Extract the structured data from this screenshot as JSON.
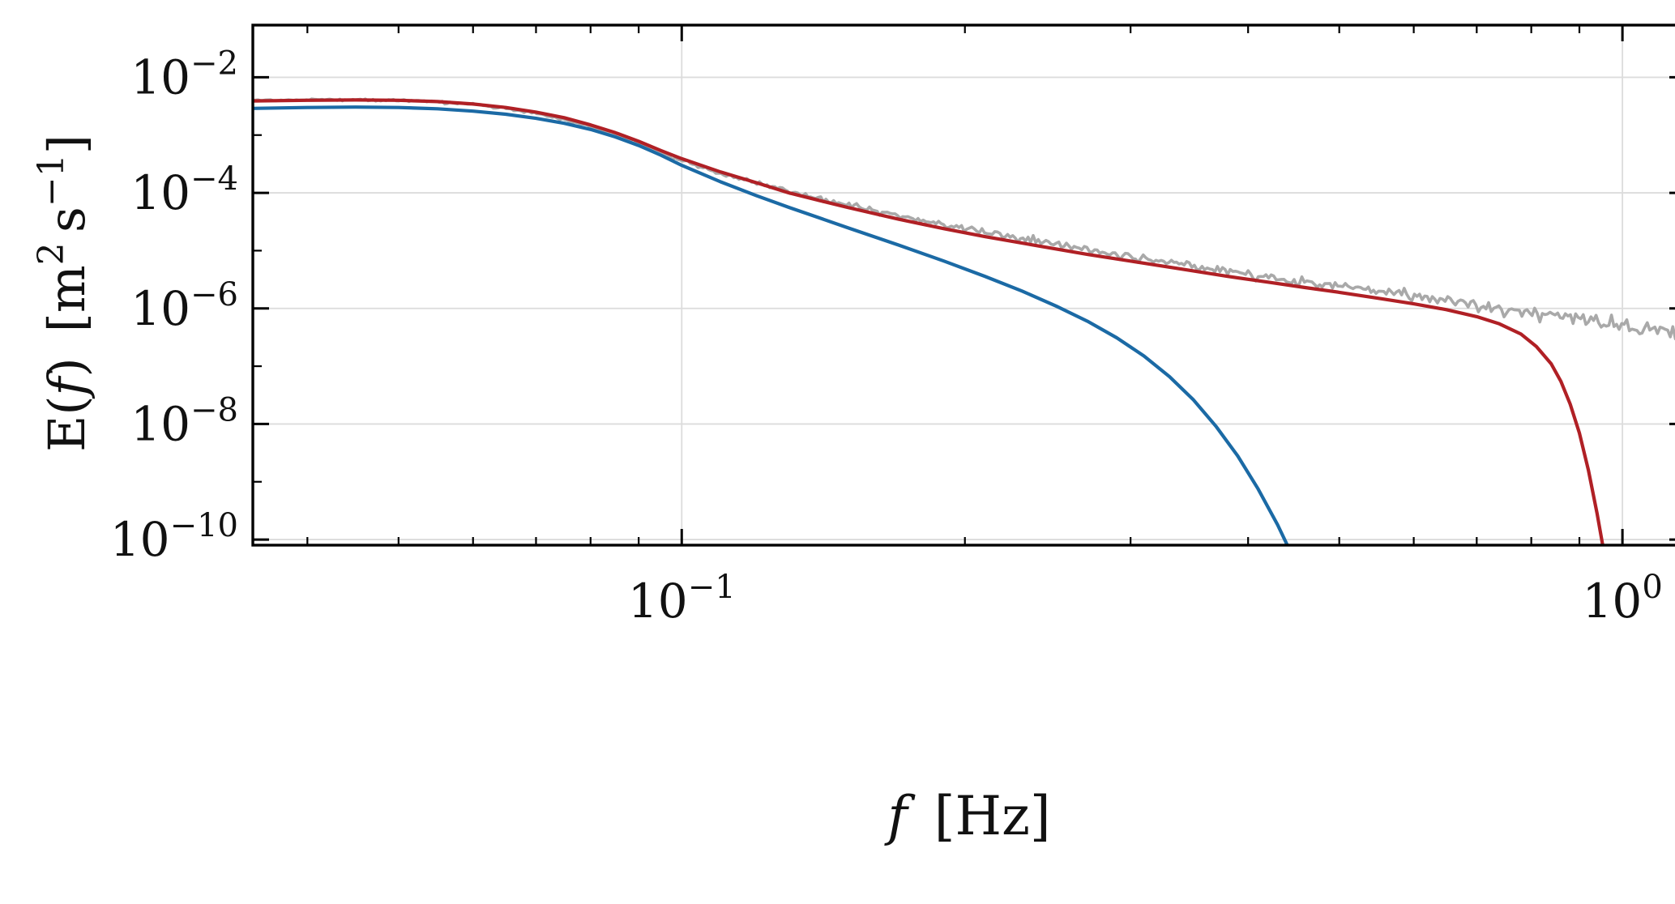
{
  "figure": {
    "background": "#ffffff",
    "frame_color": "#000000",
    "grid_color": "#dcdcdc",
    "tick_color": "#000000",
    "text_color": "#111111"
  },
  "chart_data": {
    "type": "line",
    "title": "",
    "xlabel": "f [Hz]",
    "ylabel": "E(f) [m2 s-1]",
    "xscale": "log",
    "yscale": "log",
    "xlim": [
      0.035,
      1.167
    ],
    "ylim": [
      8e-11,
      0.08
    ],
    "grid": true,
    "legend": "none",
    "xlabel_tokens": [
      {
        "t": "f",
        "i": true
      },
      {
        "t": " [Hz]"
      }
    ],
    "ylabel_tokens": [
      {
        "t": "E("
      },
      {
        "t": "f",
        "i": true
      },
      {
        "t": ") [m"
      },
      {
        "t": "2",
        "sup": true
      },
      {
        "t": " s"
      },
      {
        "t": "−1",
        "sup": true
      },
      {
        "t": "]"
      }
    ],
    "x_ticks": [
      {
        "v": 0.1,
        "base": "10",
        "exp": "−1"
      },
      {
        "v": 1.0,
        "base": "10",
        "exp": "0"
      }
    ],
    "y_ticks": [
      {
        "v": 0.01,
        "base": "10",
        "exp": "−2"
      },
      {
        "v": 0.0001,
        "base": "10",
        "exp": "−4"
      },
      {
        "v": 1e-06,
        "base": "10",
        "exp": "−6"
      },
      {
        "v": 1e-08,
        "base": "10",
        "exp": "−8"
      },
      {
        "v": 1e-10,
        "base": "10",
        "exp": "−10"
      }
    ],
    "y_unlabeled_decades": [
      0.001,
      1e-05,
      1e-07,
      1e-09
    ],
    "series": [
      {
        "name": "observed-spectrum",
        "color": "#a9a9a9",
        "width": 3.6,
        "noise": {
          "seed": 12,
          "log10_amp_min": 0.018,
          "log10_amp_max": 0.13,
          "spike_prob": 0.07,
          "spike_gain": 1.9,
          "samples": 560
        },
        "x": [
          0.035,
          0.04,
          0.045,
          0.05,
          0.055,
          0.06,
          0.065,
          0.07,
          0.075,
          0.08,
          0.085,
          0.09,
          0.095,
          0.1,
          0.11,
          0.12,
          0.13,
          0.14,
          0.15,
          0.17,
          0.19,
          0.21,
          0.24,
          0.27,
          0.3,
          0.34,
          0.38,
          0.42,
          0.46,
          0.5,
          0.55,
          0.6,
          0.65,
          0.7,
          0.76,
          0.82,
          0.88,
          0.94,
          1.0,
          1.06,
          1.12,
          1.15,
          1.16
        ],
        "y": [
          0.004,
          0.0041,
          0.0041,
          0.004,
          0.0038,
          0.0034,
          0.0029,
          0.0024,
          0.00185,
          0.0014,
          0.001,
          0.00072,
          0.0005,
          0.00036,
          0.00022,
          0.00015,
          0.000105,
          8e-05,
          6.2e-05,
          4e-05,
          2.8e-05,
          2.1e-05,
          1.45e-05,
          1.05e-05,
          8e-06,
          5.8e-06,
          4.4e-06,
          3.5e-06,
          2.9e-06,
          2.4e-06,
          2e-06,
          1.65e-06,
          1.4e-06,
          1.2e-06,
          1e-06,
          8.2e-07,
          7e-07,
          6e-07,
          5.2e-07,
          4.6e-07,
          4e-07,
          3.4e-07,
          1.3e-07
        ]
      },
      {
        "name": "model-spectrum-red",
        "color": "#b02025",
        "width": 4.2,
        "x": [
          0.035,
          0.04,
          0.045,
          0.05,
          0.055,
          0.06,
          0.065,
          0.07,
          0.075,
          0.08,
          0.085,
          0.09,
          0.095,
          0.1,
          0.11,
          0.12,
          0.13,
          0.14,
          0.15,
          0.17,
          0.19,
          0.21,
          0.24,
          0.27,
          0.3,
          0.34,
          0.38,
          0.42,
          0.46,
          0.5,
          0.55,
          0.6,
          0.65,
          0.7,
          0.74,
          0.78,
          0.81,
          0.84,
          0.86,
          0.88,
          0.9,
          0.92,
          0.94,
          0.96
        ],
        "y": [
          0.0039,
          0.004,
          0.00405,
          0.004,
          0.0038,
          0.00345,
          0.003,
          0.0025,
          0.002,
          0.0015,
          0.0011,
          0.00078,
          0.00054,
          0.00039,
          0.00023,
          0.00015,
          0.0001,
          7.4e-05,
          5.6e-05,
          3.5e-05,
          2.4e-05,
          1.75e-05,
          1.2e-05,
          8.6e-06,
          6.6e-06,
          4.8e-06,
          3.6e-06,
          2.85e-06,
          2.3e-06,
          1.9e-06,
          1.5e-06,
          1.2e-06,
          9.5e-07,
          7.2e-07,
          5.4e-07,
          3.6e-07,
          2.2e-07,
          1.1e-07,
          5.5e-08,
          2.2e-08,
          7e-09,
          1.6e-09,
          2.8e-10,
          4e-11
        ]
      },
      {
        "name": "model-spectrum-blue",
        "color": "#1b6aa5",
        "width": 4.2,
        "x": [
          0.035,
          0.04,
          0.045,
          0.05,
          0.055,
          0.06,
          0.065,
          0.07,
          0.075,
          0.08,
          0.085,
          0.09,
          0.095,
          0.1,
          0.11,
          0.12,
          0.13,
          0.14,
          0.15,
          0.17,
          0.19,
          0.21,
          0.23,
          0.25,
          0.27,
          0.29,
          0.31,
          0.33,
          0.35,
          0.37,
          0.39,
          0.41,
          0.43,
          0.45
        ],
        "y": [
          0.0029,
          0.003,
          0.00305,
          0.003,
          0.00285,
          0.0026,
          0.0023,
          0.00195,
          0.0016,
          0.00125,
          0.00093,
          0.00066,
          0.00045,
          0.0003,
          0.000155,
          9e-05,
          5.6e-05,
          3.7e-05,
          2.5e-05,
          1.25e-05,
          6.6e-06,
          3.6e-06,
          2e-06,
          1.1e-06,
          6e-07,
          3.1e-07,
          1.5e-07,
          6.6e-08,
          2.6e-08,
          9e-09,
          2.8e-09,
          7.5e-10,
          1.8e-10,
          3.8e-11
        ]
      }
    ]
  }
}
